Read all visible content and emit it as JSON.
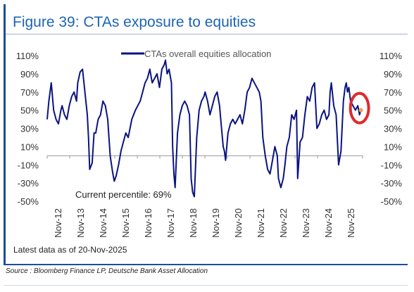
{
  "figure": {
    "title": "Figure 39: CTAs exposure to equities",
    "note": "Latest data as of 20-Nov-2025",
    "source": "Source : Bloomberg Finance LP, Deutsche Bank Asset Allocation",
    "annotation": "Current percentile: 69%"
  },
  "colors": {
    "series": "#0a1380",
    "title": "#1e64b4",
    "accent_bar": "#1e4d9b",
    "highlight_circle": "#e0282e",
    "latest_marker": "#f2a04a"
  },
  "chart_data": {
    "type": "line",
    "title": "",
    "xlabel": "",
    "ylabel": "",
    "legend": {
      "entries": [
        "CTAs overall equities allocation"
      ],
      "placement": "top-center"
    },
    "ylim": [
      -50,
      110
    ],
    "y_ticks": [
      -50,
      -30,
      -10,
      10,
      30,
      50,
      70,
      90,
      110
    ],
    "y_tick_labels": [
      "-50%",
      "-30%",
      "-10%",
      "10%",
      "30%",
      "50%",
      "70%",
      "90%",
      "110%"
    ],
    "y_tick_labels_right": [
      "-50%",
      "-30%",
      "-10%",
      "10%",
      "30%",
      "50%",
      "70%",
      "90%",
      "110%"
    ],
    "x_tick_labels": [
      "Nov-12",
      "Nov-13",
      "Nov-14",
      "Nov-15",
      "Nov-16",
      "Nov-17",
      "Nov-18",
      "Nov-19",
      "Nov-20",
      "Nov-21",
      "Nov-22",
      "Nov-23",
      "Nov-24",
      "Nov-25"
    ],
    "x_range": [
      2012.83,
      2025.95
    ],
    "grid": false,
    "series": [
      {
        "name": "CTAs overall equities allocation",
        "x": [
          2012.83,
          2012.9,
          2013.0,
          2013.1,
          2013.2,
          2013.3,
          2013.4,
          2013.45,
          2013.55,
          2013.65,
          2013.75,
          2013.85,
          2013.95,
          2014.05,
          2014.1,
          2014.2,
          2014.3,
          2014.4,
          2014.5,
          2014.55,
          2014.6,
          2014.7,
          2014.78,
          2014.85,
          2014.95,
          2015.05,
          2015.15,
          2015.25,
          2015.35,
          2015.45,
          2015.55,
          2015.62,
          2015.7,
          2015.8,
          2015.9,
          2016.0,
          2016.1,
          2016.2,
          2016.35,
          2016.5,
          2016.6,
          2016.7,
          2016.8,
          2016.9,
          2017.0,
          2017.1,
          2017.2,
          2017.3,
          2017.4,
          2017.5,
          2017.6,
          2017.7,
          2017.75,
          2017.82,
          2017.9,
          2018.0,
          2018.05,
          2018.1,
          2018.15,
          2018.25,
          2018.35,
          2018.45,
          2018.55,
          2018.65,
          2018.75,
          2018.82,
          2018.88,
          2018.95,
          2019.05,
          2019.15,
          2019.25,
          2019.35,
          2019.4,
          2019.5,
          2019.6,
          2019.7,
          2019.8,
          2019.9,
          2020.0,
          2020.05,
          2020.15,
          2020.2,
          2020.25,
          2020.35,
          2020.45,
          2020.55,
          2020.65,
          2020.75,
          2020.85,
          2020.95,
          2021.05,
          2021.15,
          2021.25,
          2021.35,
          2021.45,
          2021.55,
          2021.65,
          2021.72,
          2021.8,
          2021.9,
          2022.0,
          2022.1,
          2022.2,
          2022.3,
          2022.4,
          2022.45,
          2022.55,
          2022.65,
          2022.72,
          2022.8,
          2022.9,
          2023.0,
          2023.1,
          2023.2,
          2023.25,
          2023.35,
          2023.45,
          2023.55,
          2023.65,
          2023.75,
          2023.85,
          2023.95,
          2024.05,
          2024.15,
          2024.25,
          2024.35,
          2024.45,
          2024.55,
          2024.6,
          2024.65,
          2024.75,
          2024.85,
          2024.95,
          2025.05,
          2025.15,
          2025.22,
          2025.27,
          2025.32,
          2025.38,
          2025.45,
          2025.55,
          2025.65,
          2025.75,
          2025.82,
          2025.88
        ],
        "y": [
          40,
          60,
          80,
          50,
          40,
          35,
          50,
          55,
          45,
          40,
          55,
          65,
          70,
          60,
          80,
          92,
          95,
          70,
          45,
          20,
          -15,
          -8,
          25,
          25,
          40,
          45,
          60,
          55,
          40,
          0,
          -18,
          -28,
          -22,
          -10,
          5,
          15,
          25,
          20,
          40,
          50,
          55,
          60,
          70,
          80,
          85,
          95,
          80,
          85,
          90,
          75,
          95,
          100,
          105,
          90,
          95,
          80,
          10,
          -20,
          -35,
          25,
          45,
          55,
          60,
          55,
          45,
          -25,
          -40,
          -45,
          20,
          50,
          60,
          65,
          70,
          60,
          45,
          55,
          65,
          70,
          55,
          40,
          10,
          5,
          -5,
          25,
          35,
          40,
          35,
          40,
          45,
          35,
          50,
          70,
          75,
          85,
          80,
          75,
          70,
          60,
          20,
          0,
          -15,
          -20,
          -5,
          10,
          0,
          -25,
          -35,
          -25,
          -10,
          10,
          20,
          45,
          40,
          50,
          -25,
          15,
          20,
          45,
          65,
          60,
          75,
          80,
          30,
          35,
          45,
          50,
          40,
          45,
          70,
          80,
          55,
          45,
          -10,
          5,
          60,
          75,
          80,
          70,
          75,
          60,
          55,
          50,
          55,
          45,
          50
        ]
      }
    ],
    "latest_value": {
      "x": 2025.88,
      "y": 50
    }
  }
}
